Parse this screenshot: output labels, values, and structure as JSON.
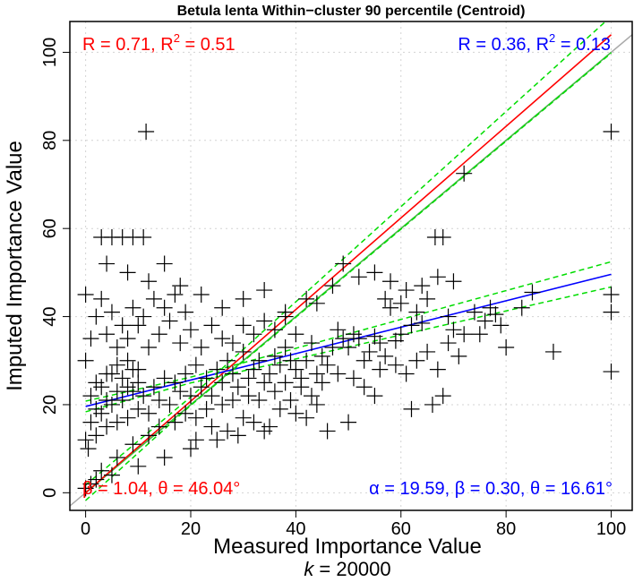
{
  "chart_data": {
    "type": "scatter",
    "title": "Betula lenta Within−cluster 90 percentile (Centroid)",
    "xlabel": "Measured Importance Value",
    "subtitle_k_label": "k",
    "subtitle_k_value": "= 20000",
    "ylabel": "Imputed Importance Value",
    "xlim": [
      -3,
      104
    ],
    "ylim": [
      -4,
      107
    ],
    "x_ticks": [
      0,
      20,
      40,
      60,
      80,
      100
    ],
    "y_ticks": [
      0,
      20,
      40,
      60,
      80,
      100
    ],
    "x_tick_labels": [
      "0",
      "20",
      "40",
      "60",
      "80",
      "100"
    ],
    "y_tick_labels": [
      "0",
      "20",
      "40",
      "60",
      "80",
      "100"
    ],
    "grid": true,
    "marker": "+",
    "colors": {
      "points": "#000000",
      "full_fit": "#ff0000",
      "partial_fit": "#0000ff",
      "conf_band": "#00dd00",
      "identity": "#aaaaaa",
      "reference": "#44bb44"
    },
    "stats": {
      "red_corr": "R = 0.71, R",
      "red_corr_tail": " = 0.51",
      "blue_corr": "R = 0.36, R",
      "blue_corr_tail": " = 0.13",
      "sup": "2",
      "red_slope": "β = 1.04, θ = 46.04°",
      "blue_slope": "α = 19.59, β = 0.30, θ = 16.61°"
    },
    "lines": [
      {
        "name": "identity",
        "slope": 1.0,
        "intercept": 0.0
      },
      {
        "name": "reference",
        "slope": 1.0,
        "intercept": 0.0
      },
      {
        "name": "full_fit",
        "slope": 1.04,
        "intercept": 0.0
      },
      {
        "name": "partial_fit",
        "slope": 0.3,
        "intercept": 19.59
      }
    ],
    "points": [
      [
        11.5,
        82
      ],
      [
        100,
        82
      ],
      [
        72,
        72.5
      ],
      [
        100,
        27.5
      ],
      [
        100,
        41
      ],
      [
        100,
        45
      ],
      [
        89,
        32
      ],
      [
        85,
        45.5
      ],
      [
        83,
        42
      ],
      [
        78,
        40.5
      ],
      [
        77,
        42
      ],
      [
        70,
        37
      ],
      [
        68,
        58
      ],
      [
        66.5,
        58
      ],
      [
        64,
        38.5
      ],
      [
        62,
        38
      ],
      [
        60,
        36
      ],
      [
        59,
        34.5
      ],
      [
        58,
        42
      ],
      [
        57,
        31
      ],
      [
        56,
        34
      ],
      [
        55,
        35.5
      ],
      [
        54,
        32
      ],
      [
        53,
        30
      ],
      [
        52,
        35
      ],
      [
        51,
        36
      ],
      [
        50,
        33
      ],
      [
        49,
        35
      ],
      [
        48,
        37
      ],
      [
        47,
        33
      ],
      [
        46,
        29
      ],
      [
        45,
        31
      ],
      [
        44,
        27
      ],
      [
        43,
        34
      ],
      [
        42,
        30
      ],
      [
        41,
        26
      ],
      [
        40,
        28
      ],
      [
        39,
        30
      ],
      [
        38,
        33
      ],
      [
        37,
        29
      ],
      [
        36,
        31
      ],
      [
        35,
        27
      ],
      [
        34,
        25
      ],
      [
        33,
        30
      ],
      [
        32,
        28
      ],
      [
        31,
        26
      ],
      [
        30,
        32
      ],
      [
        29,
        24
      ],
      [
        28,
        27
      ],
      [
        27,
        30
      ],
      [
        26,
        25
      ],
      [
        25,
        28
      ],
      [
        24,
        22
      ],
      [
        23,
        26
      ],
      [
        22,
        24
      ],
      [
        21,
        29
      ],
      [
        20,
        22
      ],
      [
        19,
        27
      ],
      [
        18,
        23
      ],
      [
        17,
        25
      ],
      [
        16,
        20
      ],
      [
        15,
        26
      ],
      [
        14,
        21
      ],
      [
        13,
        24
      ],
      [
        12,
        18
      ],
      [
        11,
        22
      ],
      [
        10,
        19
      ],
      [
        9,
        23
      ],
      [
        8,
        17
      ],
      [
        7,
        21
      ],
      [
        6,
        16
      ],
      [
        5,
        20
      ],
      [
        4,
        15
      ],
      [
        3,
        18
      ],
      [
        2,
        13
      ],
      [
        1,
        16
      ],
      [
        0.5,
        10
      ],
      [
        0,
        12
      ],
      [
        0,
        30
      ],
      [
        0,
        45
      ],
      [
        3,
        58
      ],
      [
        5,
        58
      ],
      [
        7,
        58
      ],
      [
        9,
        58
      ],
      [
        11,
        58
      ],
      [
        4,
        52
      ],
      [
        8,
        50
      ],
      [
        12,
        48
      ],
      [
        15,
        52
      ],
      [
        18,
        47
      ],
      [
        22,
        45
      ],
      [
        26,
        42
      ],
      [
        30,
        44
      ],
      [
        34,
        46
      ],
      [
        38,
        40
      ],
      [
        42,
        44
      ],
      [
        44,
        43
      ],
      [
        47,
        47
      ],
      [
        49,
        52
      ],
      [
        52,
        49
      ],
      [
        55,
        50
      ],
      [
        58,
        48
      ],
      [
        61,
        46
      ],
      [
        64,
        47
      ],
      [
        67,
        49
      ],
      [
        70,
        48
      ],
      [
        72,
        36
      ],
      [
        74,
        41
      ],
      [
        76,
        39
      ],
      [
        71,
        31
      ],
      [
        68,
        22
      ],
      [
        66,
        20
      ],
      [
        62,
        19
      ],
      [
        55,
        22
      ],
      [
        50,
        16
      ],
      [
        46,
        14
      ],
      [
        40,
        18
      ],
      [
        35,
        15
      ],
      [
        30,
        17
      ],
      [
        25,
        12
      ],
      [
        20,
        10
      ],
      [
        15,
        8
      ],
      [
        10,
        6
      ],
      [
        5,
        4
      ],
      [
        2,
        3
      ],
      [
        1,
        2
      ],
      [
        0,
        1
      ],
      [
        3,
        5
      ],
      [
        6,
        8
      ],
      [
        9,
        11
      ],
      [
        12,
        13
      ],
      [
        14,
        15
      ],
      [
        17,
        16
      ],
      [
        19,
        18
      ],
      [
        21,
        17
      ],
      [
        23,
        19
      ],
      [
        26,
        20
      ],
      [
        28,
        21
      ],
      [
        31,
        22
      ],
      [
        33,
        21
      ],
      [
        36,
        23
      ],
      [
        38,
        25
      ],
      [
        41,
        24
      ],
      [
        43,
        22
      ],
      [
        45,
        25
      ],
      [
        48,
        27
      ],
      [
        51,
        26
      ],
      [
        53,
        24
      ],
      [
        56,
        28
      ],
      [
        59,
        29
      ],
      [
        61,
        27
      ],
      [
        63,
        30
      ],
      [
        65,
        32
      ],
      [
        67,
        28
      ],
      [
        69,
        34
      ],
      [
        2,
        40
      ],
      [
        4,
        36
      ],
      [
        6,
        33
      ],
      [
        8,
        30
      ],
      [
        10,
        28
      ],
      [
        2,
        25
      ],
      [
        4,
        27
      ],
      [
        6,
        29
      ],
      [
        8,
        35
      ],
      [
        10,
        38
      ],
      [
        12,
        33
      ],
      [
        14,
        36
      ],
      [
        16,
        39
      ],
      [
        18,
        34
      ],
      [
        20,
        37
      ],
      [
        22,
        33
      ],
      [
        24,
        38
      ],
      [
        26,
        35
      ],
      [
        28,
        34
      ],
      [
        30,
        38
      ],
      [
        32,
        36
      ],
      [
        34,
        39
      ],
      [
        36,
        37
      ],
      [
        38,
        41
      ],
      [
        40,
        36
      ],
      [
        1,
        35
      ],
      [
        3,
        44
      ],
      [
        5,
        41
      ],
      [
        7,
        38
      ],
      [
        9,
        42
      ],
      [
        11,
        40
      ],
      [
        13,
        44
      ],
      [
        15,
        42
      ],
      [
        17,
        45
      ],
      [
        19,
        41
      ],
      [
        1,
        22
      ],
      [
        2,
        19
      ],
      [
        3,
        24
      ],
      [
        4,
        21
      ],
      [
        5,
        27
      ],
      [
        6,
        23
      ],
      [
        7,
        26
      ],
      [
        8,
        24
      ],
      [
        9,
        28
      ],
      [
        10,
        25
      ],
      [
        21,
        12
      ],
      [
        24,
        15
      ],
      [
        27,
        14
      ],
      [
        29,
        13
      ],
      [
        32,
        16
      ],
      [
        34,
        14
      ],
      [
        37,
        19
      ],
      [
        39,
        21
      ],
      [
        42,
        17
      ],
      [
        44,
        20
      ],
      [
        57,
        44
      ],
      [
        60,
        43
      ],
      [
        63,
        41
      ],
      [
        79,
        38
      ],
      [
        65,
        44
      ],
      [
        75,
        36
      ],
      [
        80,
        33
      ],
      [
        69,
        40
      ]
    ]
  }
}
